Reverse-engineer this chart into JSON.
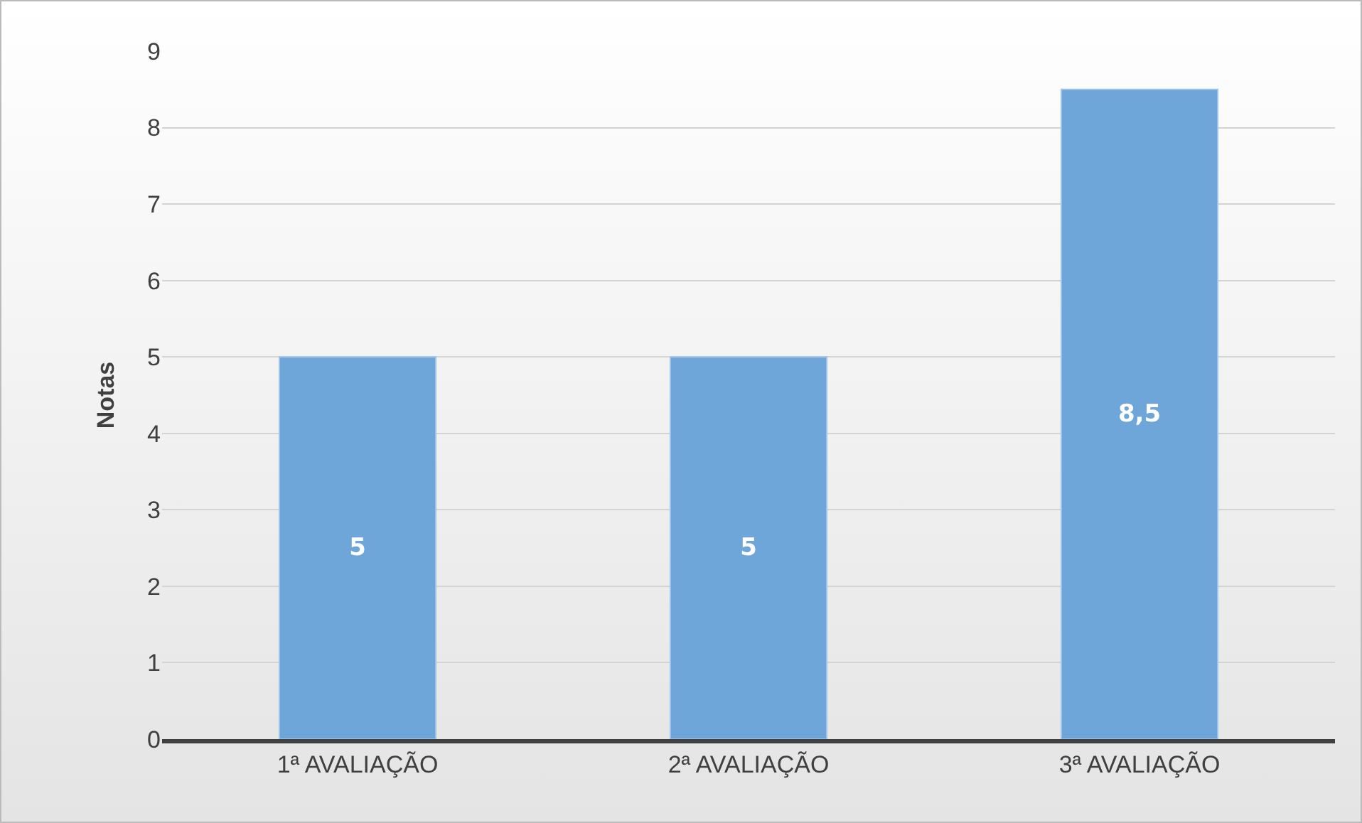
{
  "chart_data": {
    "type": "bar",
    "ylabel": "Notas",
    "categories": [
      "1ª AVALIAÇÃO",
      "2ª AVALIAÇÃO",
      "3ª AVALIAÇÃO"
    ],
    "values": [
      5,
      5,
      8.5
    ],
    "value_labels": [
      "5",
      "5",
      "8,5"
    ],
    "color": "#6fa6da",
    "ylim": [
      0,
      9
    ],
    "yticks": [
      0,
      1,
      2,
      3,
      4,
      5,
      6,
      7,
      8,
      9
    ],
    "grid": "y"
  }
}
